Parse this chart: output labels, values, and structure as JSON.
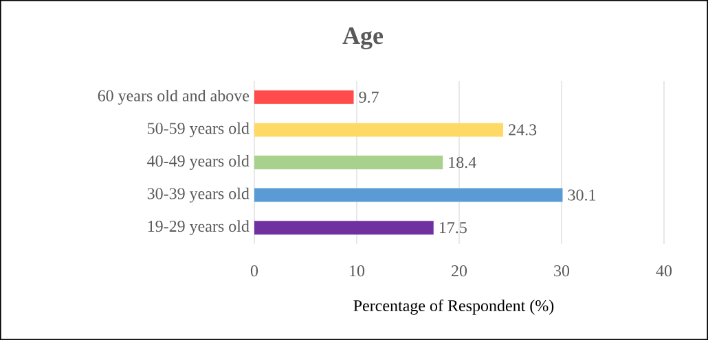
{
  "chart_data": {
    "type": "bar",
    "orientation": "horizontal",
    "title": "Age",
    "xlabel": "Percentage of Respondent (%)",
    "categories": [
      "60 years old and above",
      "50-59 years old",
      "40-49 years old",
      "30-39 years old",
      "19-29 years old"
    ],
    "values": [
      9.7,
      24.3,
      18.4,
      30.1,
      17.5
    ],
    "colors": [
      "#ff4b4b",
      "#ffd966",
      "#a9d18e",
      "#5b9bd5",
      "#7030a0"
    ],
    "xlim": [
      0,
      40
    ],
    "xticks": [
      0,
      10,
      20,
      30,
      40
    ],
    "grid": "x",
    "data_labels": true
  }
}
